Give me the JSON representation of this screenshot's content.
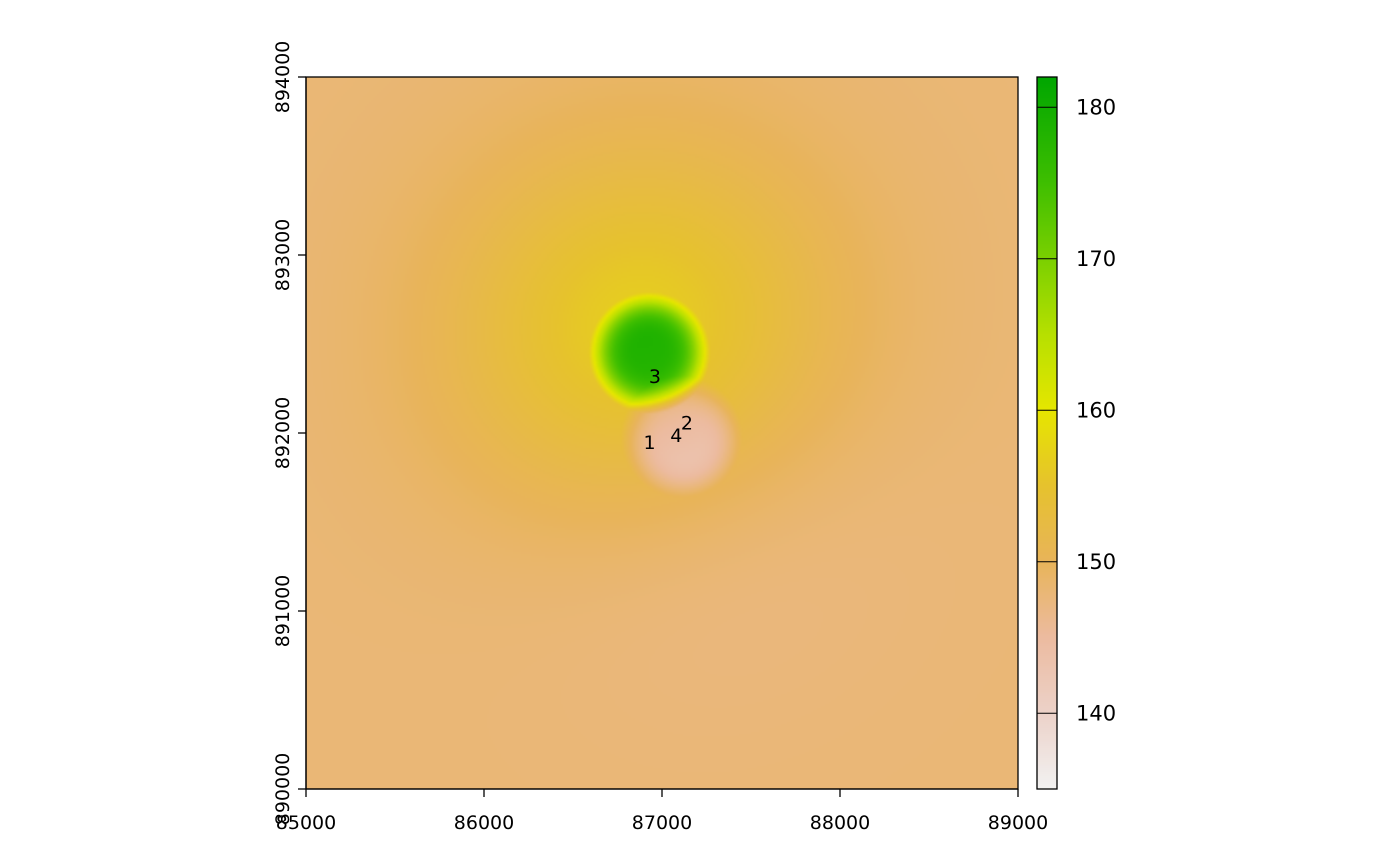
{
  "chart_data": {
    "type": "heatmap",
    "title": "",
    "xlabel": "",
    "ylabel": "",
    "xlim": [
      85000,
      89000
    ],
    "ylim": [
      890000,
      894000
    ],
    "x_ticks": [
      85000,
      86000,
      87000,
      88000,
      89000
    ],
    "x_tick_labels": [
      "85000",
      "86000",
      "87000",
      "88000",
      "89000"
    ],
    "y_ticks": [
      890000,
      891000,
      892000,
      893000,
      894000
    ],
    "y_tick_labels": [
      "890000",
      "891000",
      "892000",
      "893000",
      "894000"
    ],
    "legend": {
      "position": "right",
      "range": [
        135,
        182
      ],
      "ticks": [
        140,
        150,
        160,
        170,
        180
      ],
      "tick_labels": [
        "140",
        "150",
        "160",
        "170",
        "180"
      ],
      "color_stops": [
        {
          "value": 135,
          "color": "#f2f2f2"
        },
        {
          "value": 140,
          "color": "#ecd2c9"
        },
        {
          "value": 145,
          "color": "#ecbba0"
        },
        {
          "value": 150,
          "color": "#e8b45a"
        },
        {
          "value": 155,
          "color": "#e6c22e"
        },
        {
          "value": 160,
          "color": "#e6e600"
        },
        {
          "value": 165,
          "color": "#b7e000"
        },
        {
          "value": 170,
          "color": "#7bd000"
        },
        {
          "value": 175,
          "color": "#3fbf00"
        },
        {
          "value": 182,
          "color": "#00a600"
        }
      ]
    },
    "background_value": 148,
    "features": [
      {
        "kind": "peak",
        "x": 86930,
        "y": 892450,
        "value": 182,
        "radius": 330
      },
      {
        "kind": "trough",
        "x": 87110,
        "y": 891980,
        "value": 135,
        "radius": 330
      }
    ],
    "points": [
      {
        "label": "1",
        "x": 86930,
        "y": 891950
      },
      {
        "label": "2",
        "x": 87140,
        "y": 892060
      },
      {
        "label": "3",
        "x": 86960,
        "y": 892320
      },
      {
        "label": "4",
        "x": 87080,
        "y": 891990
      }
    ]
  }
}
